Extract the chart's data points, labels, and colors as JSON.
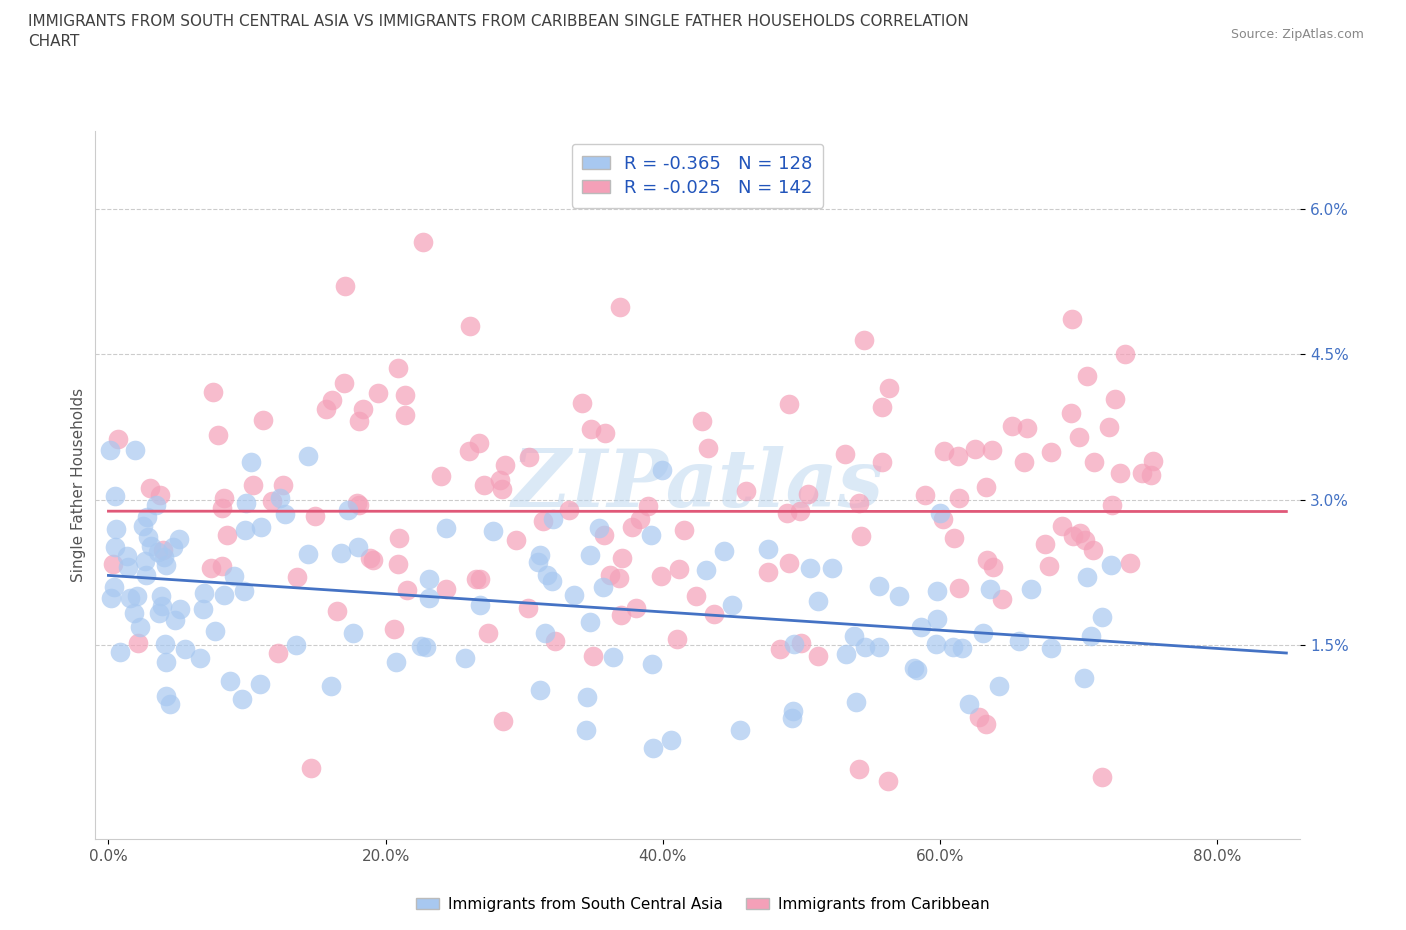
{
  "title_line1": "IMMIGRANTS FROM SOUTH CENTRAL ASIA VS IMMIGRANTS FROM CARIBBEAN SINGLE FATHER HOUSEHOLDS CORRELATION",
  "title_line2": "CHART",
  "source": "Source: ZipAtlas.com",
  "ylabel": "Single Father Households",
  "xlabel_ticks": [
    "0.0%",
    "20.0%",
    "40.0%",
    "60.0%",
    "80.0%"
  ],
  "xlabel_tick_vals": [
    0.0,
    0.2,
    0.4,
    0.6,
    0.8
  ],
  "ytick_labels": [
    "1.5%",
    "3.0%",
    "4.5%",
    "6.0%"
  ],
  "ytick_vals": [
    0.015,
    0.03,
    0.045,
    0.06
  ],
  "xlim": [
    -0.01,
    0.86
  ],
  "ylim": [
    -0.005,
    0.068
  ],
  "blue_R": -0.365,
  "blue_N": 128,
  "pink_R": -0.025,
  "pink_N": 142,
  "blue_color": "#a8c8f0",
  "pink_color": "#f4a0b8",
  "blue_line_color": "#4472c4",
  "pink_line_color": "#e05878",
  "legend_label_blue": "Immigrants from South Central Asia",
  "legend_label_pink": "Immigrants from Caribbean",
  "watermark": "ZIPatlas",
  "background_color": "#ffffff",
  "grid_color": "#cccccc",
  "title_color": "#404040",
  "source_color": "#888888",
  "tick_color": "#4472c4"
}
